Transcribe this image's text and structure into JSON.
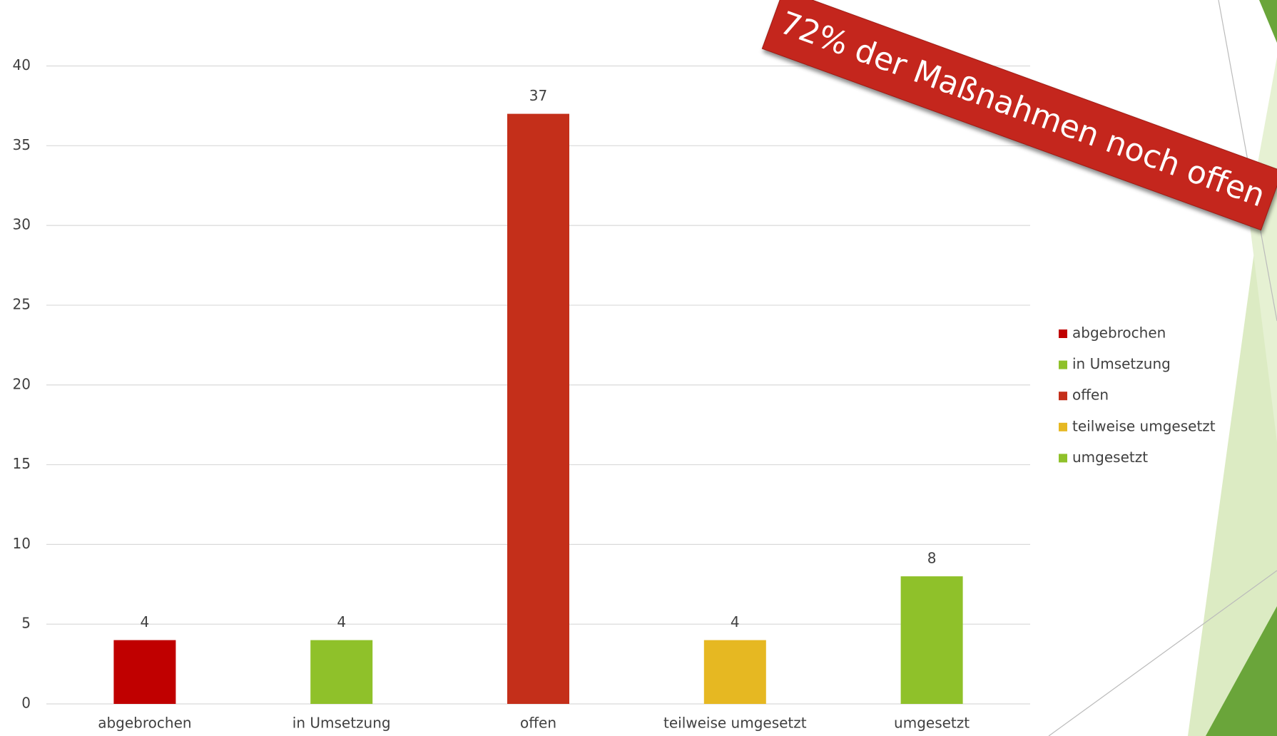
{
  "chart_data": {
    "type": "bar",
    "annotation": "72% der Maßnahmen noch offen",
    "categories": [
      "abgebrochen",
      "in Umsetzung",
      "offen",
      "teilweise umgesetzt",
      "umgesetzt"
    ],
    "values": [
      4,
      4,
      37,
      4,
      8
    ],
    "colors": [
      "#c00000",
      "#8fc12a",
      "#c42f1a",
      "#e6b822",
      "#8fc12a"
    ],
    "ylim": [
      0,
      40
    ],
    "yticks": [
      0,
      5,
      10,
      15,
      20,
      25,
      30,
      35,
      40
    ],
    "grid": true,
    "legend": "right"
  }
}
